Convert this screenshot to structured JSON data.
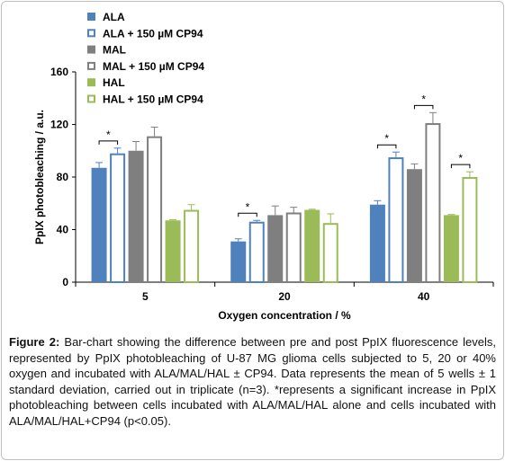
{
  "chart_data": {
    "type": "bar",
    "title": "",
    "xlabel": "Oxygen concentration / %",
    "ylabel": "PpIX photobleaching / a.u.",
    "ylim": [
      0,
      160
    ],
    "yticks": [
      "0",
      "40",
      "80",
      "120",
      "160"
    ],
    "categories": [
      "5",
      "20",
      "40"
    ],
    "legend_position": "top-left",
    "grid": false,
    "series": [
      {
        "name": "ALA",
        "color": "#4f81bd",
        "style": "filled",
        "values": [
          87,
          31,
          59
        ],
        "errors": [
          4,
          2,
          3
        ]
      },
      {
        "name": "ALA + 150 µM CP94",
        "color": "#4f81bd",
        "style": "outline",
        "values": [
          98,
          46,
          95
        ],
        "errors": [
          4,
          1,
          4
        ]
      },
      {
        "name": "MAL",
        "color": "#7f7f7f",
        "style": "filled",
        "values": [
          100,
          51,
          86
        ],
        "errors": [
          7,
          7,
          4
        ]
      },
      {
        "name": "MAL + 150 µM CP94",
        "color": "#7f7f7f",
        "style": "outline",
        "values": [
          111,
          53,
          121
        ],
        "errors": [
          7,
          4,
          8
        ]
      },
      {
        "name": "HAL",
        "color": "#9bbb59",
        "style": "filled",
        "values": [
          47,
          55,
          51
        ],
        "errors": [
          0.5,
          0.5,
          0.5
        ]
      },
      {
        "name": "HAL + 150 µM CP94",
        "color": "#9bbb59",
        "style": "outline",
        "values": [
          55,
          45,
          80
        ],
        "errors": [
          4,
          7,
          4
        ]
      }
    ],
    "significance": [
      {
        "category": "5",
        "from": "ALA",
        "to": "ALA + 150 µM CP94",
        "label": "*"
      },
      {
        "category": "20",
        "from": "ALA",
        "to": "ALA + 150 µM CP94",
        "label": "*"
      },
      {
        "category": "40",
        "from": "ALA",
        "to": "ALA + 150 µM CP94",
        "label": "*"
      },
      {
        "category": "40",
        "from": "MAL",
        "to": "MAL + 150 µM CP94",
        "label": "*"
      },
      {
        "category": "40",
        "from": "HAL",
        "to": "HAL + 150 µM CP94",
        "label": "*"
      }
    ]
  },
  "caption": {
    "label": "Figure 2:",
    "text": " Bar-chart showing the difference between pre and post PpIX fluorescence levels, represented by PpIX photobleaching of U-87 MG glioma cells subjected to 5, 20 or 40% oxygen and incubated with ALA/MAL/HAL ± CP94. Data represents the mean of 5 wells ± 1 standard deviation, carried out in triplicate (n=3). *represents a significant increase in PpIX photobleaching between cells incubated with ALA/MAL/HAL alone and cells incubated with ALA/MAL/HAL+CP94 (p<0.05)."
  }
}
